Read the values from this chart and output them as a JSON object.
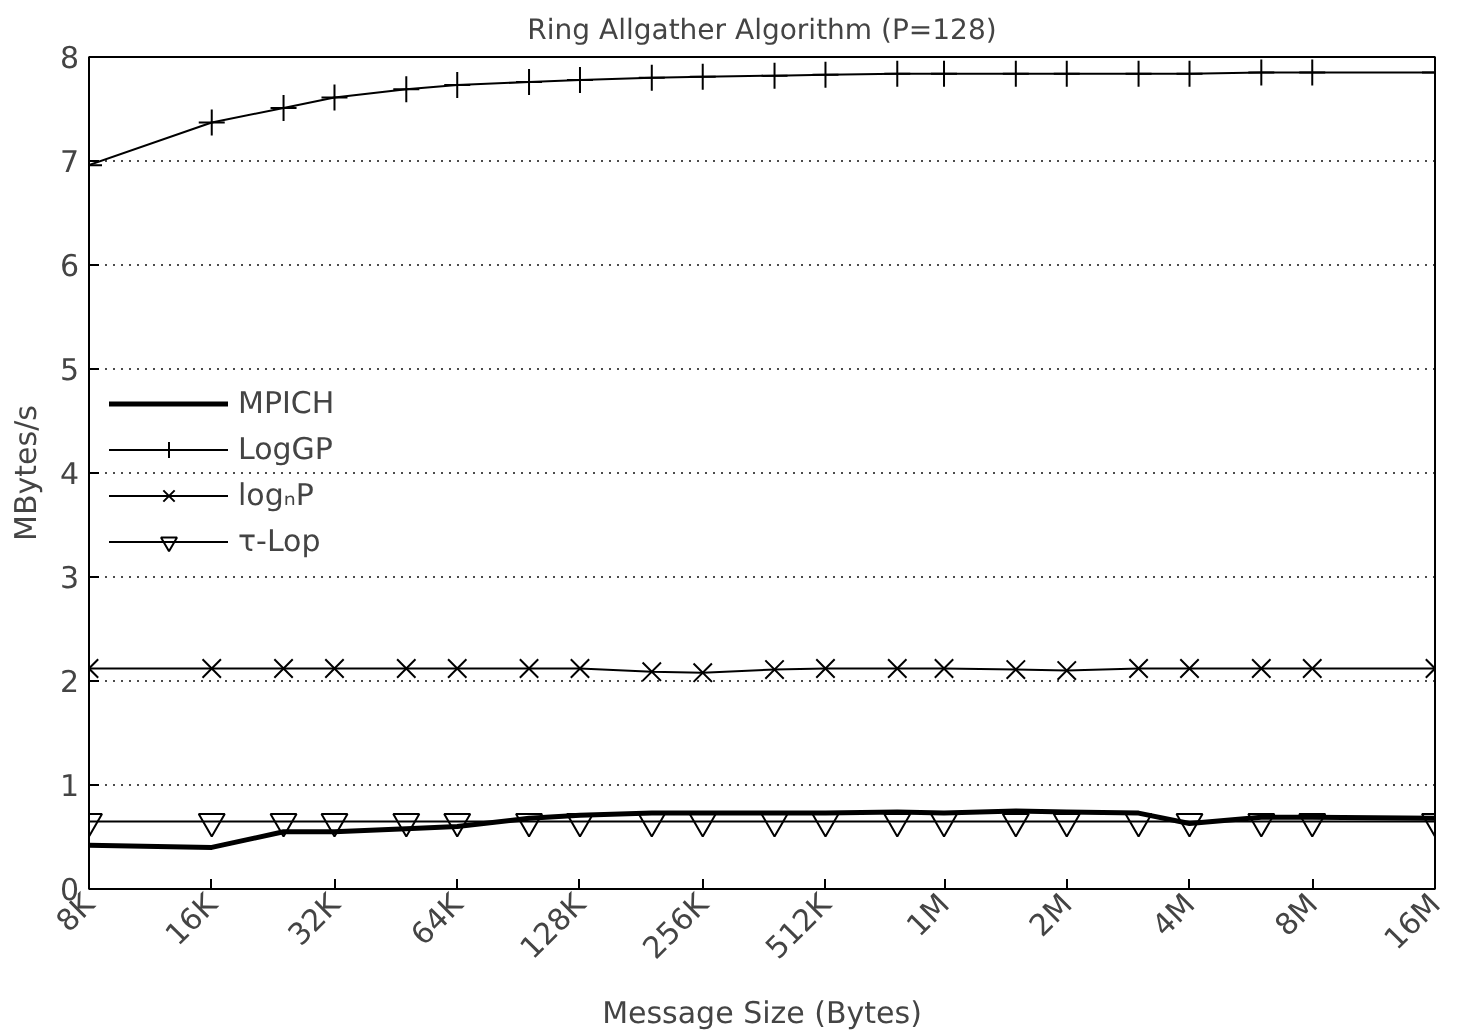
{
  "chart_data": {
    "type": "line",
    "title": "Ring Allgather Algorithm (P=128)",
    "xlabel": "Message Size (Bytes)",
    "ylabel": "MBytes/s",
    "log": "x",
    "x": [
      8000,
      16000,
      24000,
      32000,
      48000,
      64000,
      96000,
      128000,
      192000,
      256000,
      384000,
      512000,
      768000,
      1000000,
      1500000,
      2000000,
      3000000,
      4000000,
      6000000,
      8000000,
      16000000
    ],
    "xlim": [
      8000,
      16000000
    ],
    "xticks": [
      {
        "value": 8000,
        "label": "8K"
      },
      {
        "value": 16000,
        "label": "16K"
      },
      {
        "value": 32000,
        "label": "32K"
      },
      {
        "value": 64000,
        "label": "64K"
      },
      {
        "value": 128000,
        "label": "128K"
      },
      {
        "value": 256000,
        "label": "256K"
      },
      {
        "value": 512000,
        "label": "512K"
      },
      {
        "value": 1000000,
        "label": "1M"
      },
      {
        "value": 2000000,
        "label": "2M"
      },
      {
        "value": 4000000,
        "label": "4M"
      },
      {
        "value": 8000000,
        "label": "8M"
      },
      {
        "value": 16000000,
        "label": "16M"
      }
    ],
    "ylim": [
      0,
      8
    ],
    "yticks": [
      0,
      1,
      2,
      3,
      4,
      5,
      6,
      7,
      8
    ],
    "grid": "y",
    "legend": "left",
    "series": [
      {
        "name": "MPICH",
        "color": "#000000",
        "marker": "none",
        "values": [
          0.42,
          0.4,
          0.55,
          0.55,
          0.58,
          0.6,
          0.68,
          0.71,
          0.73,
          0.73,
          0.73,
          0.73,
          0.74,
          0.73,
          0.75,
          0.74,
          0.73,
          0.63,
          0.69,
          0.69,
          0.68
        ]
      },
      {
        "name": "LogGP",
        "color": "#000000",
        "marker": "cross",
        "values": [
          6.96,
          7.37,
          7.51,
          7.61,
          7.69,
          7.73,
          7.76,
          7.78,
          7.8,
          7.81,
          7.82,
          7.83,
          7.84,
          7.84,
          7.84,
          7.84,
          7.84,
          7.84,
          7.85,
          7.85,
          7.85
        ]
      },
      {
        "name": "logₙP",
        "color": "#000000",
        "marker": "x",
        "values": [
          2.12,
          2.12,
          2.12,
          2.12,
          2.12,
          2.12,
          2.12,
          2.12,
          2.09,
          2.08,
          2.11,
          2.12,
          2.12,
          2.12,
          2.11,
          2.1,
          2.12,
          2.12,
          2.12,
          2.12,
          2.12
        ]
      },
      {
        "name": "τ-Lop",
        "color": "#000000",
        "marker": "triangle",
        "values": [
          0.65,
          0.65,
          0.65,
          0.65,
          0.65,
          0.65,
          0.65,
          0.65,
          0.65,
          0.65,
          0.65,
          0.65,
          0.65,
          0.65,
          0.65,
          0.65,
          0.65,
          0.65,
          0.65,
          0.65,
          0.65
        ]
      }
    ]
  }
}
